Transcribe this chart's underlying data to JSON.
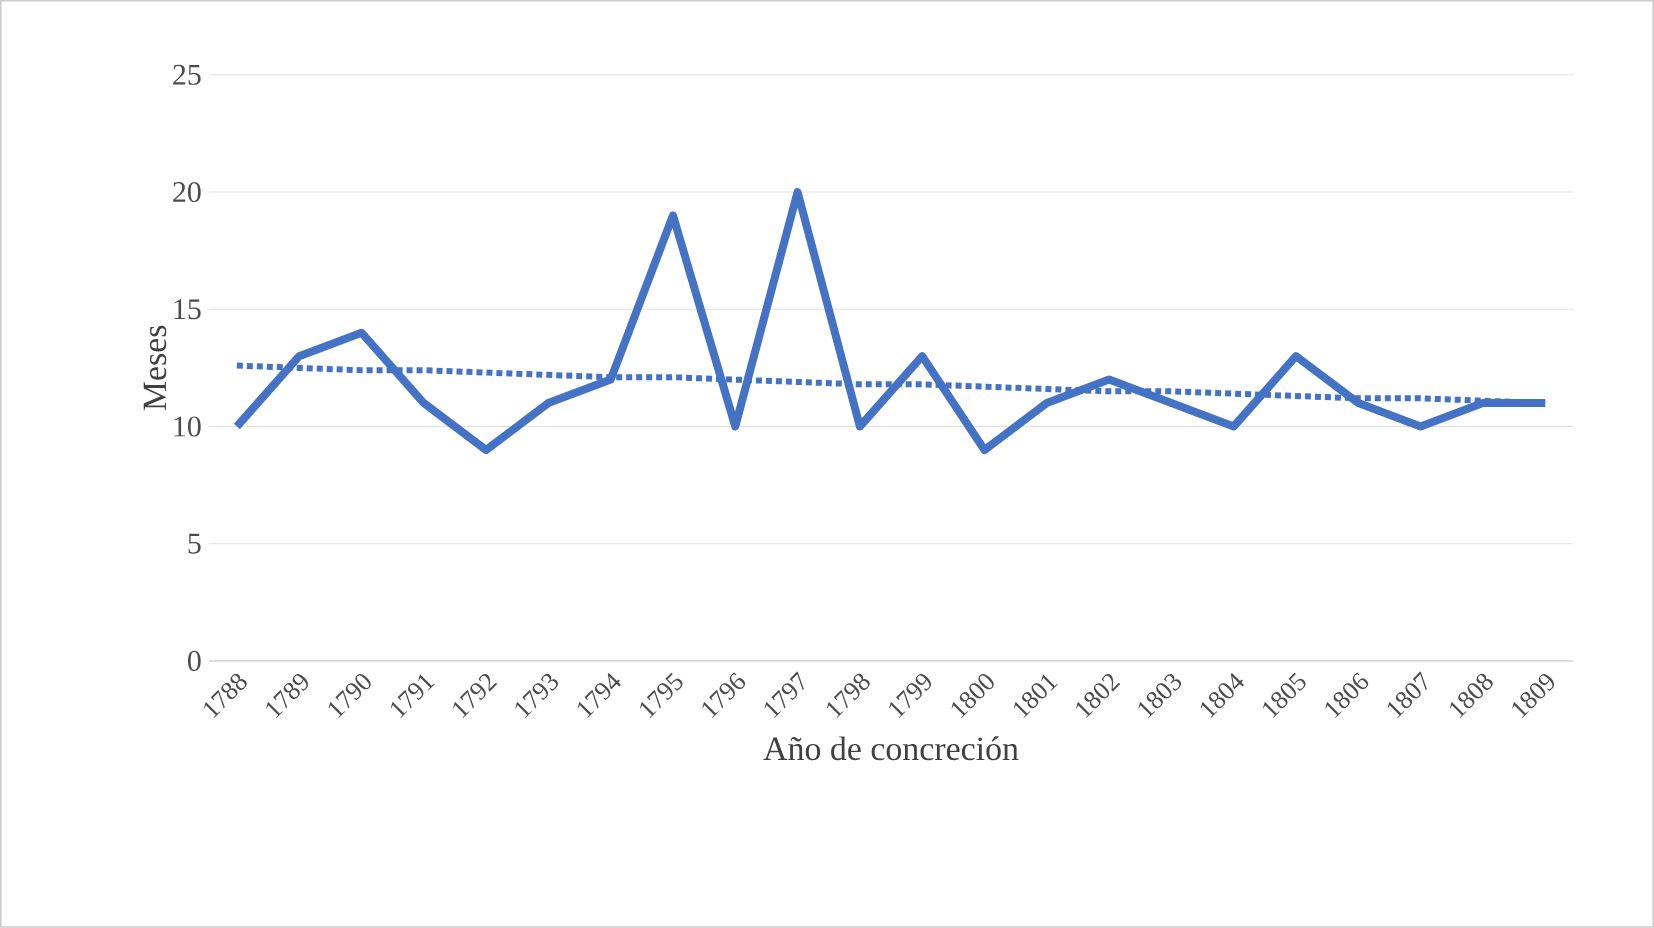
{
  "chart_data": {
    "type": "line",
    "xlabel": "Año de concreción",
    "ylabel": "Meses",
    "categories": [
      "1788",
      "1789",
      "1790",
      "1791",
      "1792",
      "1793",
      "1794",
      "1795",
      "1796",
      "1797",
      "1798",
      "1799",
      "1800",
      "1801",
      "1802",
      "1803",
      "1804",
      "1805",
      "1806",
      "1807",
      "1808",
      "1809"
    ],
    "series": [
      {
        "color": "#4472c4",
        "line_style": "solid",
        "values": [
          10,
          13,
          14,
          11,
          9,
          11,
          12,
          19,
          10,
          20,
          10,
          13,
          9,
          11,
          12,
          11,
          10,
          13,
          11,
          10,
          11,
          11
        ]
      },
      {
        "color": "#4472c4",
        "line_style": "dotted",
        "values": [
          12.6,
          12.5,
          12.4,
          12.4,
          12.3,
          12.2,
          12.1,
          12.1,
          12.0,
          11.9,
          11.8,
          11.8,
          11.7,
          11.6,
          11.5,
          11.5,
          11.4,
          11.3,
          11.2,
          11.2,
          11.1,
          11.0
        ]
      }
    ],
    "ylim": [
      0,
      25
    ],
    "yticks": [
      0,
      5,
      10,
      15,
      20,
      25
    ],
    "grid": "y",
    "marker": "none"
  }
}
